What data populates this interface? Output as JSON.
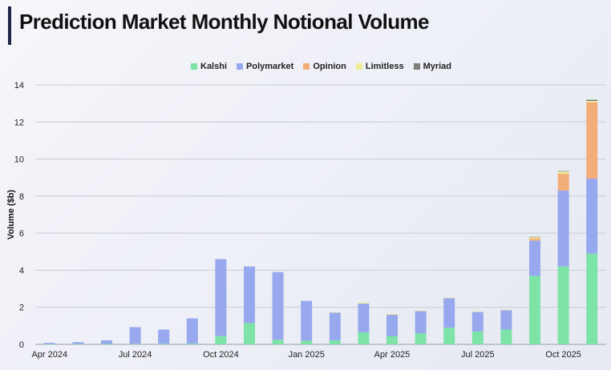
{
  "colors": {
    "kalshi": "#7de3a7",
    "polymarket": "#98a8ee",
    "opinion": "#f3ad78",
    "limitless": "#f0eb96",
    "myriad": "#7f8079",
    "title_accent": "#1f2544"
  },
  "chart_data": {
    "type": "bar",
    "stacked": true,
    "title": "Prediction Market Monthly Notional Volume",
    "ylabel": "Volume ($b)",
    "xlabel": "",
    "ylim": [
      0,
      14
    ],
    "yticks": [
      0,
      2,
      4,
      6,
      8,
      10,
      12,
      14
    ],
    "grid": true,
    "legend_position": "top-center",
    "categories": [
      "Apr 2024",
      "May 2024",
      "Jun 2024",
      "Jul 2024",
      "Aug 2024",
      "Sep 2024",
      "Oct 2024",
      "Nov 2024",
      "Dec 2024",
      "Jan 2025",
      "Feb 2025",
      "Mar 2025",
      "Apr 2025",
      "May 2025",
      "Jun 2025",
      "Jul 2025",
      "Aug 2025",
      "Sep 2025",
      "Oct 2025",
      "Nov 2025"
    ],
    "xtick_labels": [
      {
        "index": 0,
        "label": "Apr 2024"
      },
      {
        "index": 3,
        "label": "Jul 2024"
      },
      {
        "index": 6,
        "label": "Oct 2024"
      },
      {
        "index": 9,
        "label": "Jan 2025"
      },
      {
        "index": 12,
        "label": "Apr 2025"
      },
      {
        "index": 15,
        "label": "Jul 2025"
      },
      {
        "index": 18,
        "label": "Oct 2025"
      }
    ],
    "series": [
      {
        "name": "Kalshi",
        "color_key": "kalshi",
        "values": [
          0.01,
          0.02,
          0.02,
          0.03,
          0.03,
          0.05,
          0.45,
          1.15,
          0.25,
          0.2,
          0.22,
          0.65,
          0.45,
          0.6,
          0.9,
          0.7,
          0.8,
          3.7,
          4.2,
          4.9
        ]
      },
      {
        "name": "Polymarket",
        "color_key": "polymarket",
        "values": [
          0.07,
          0.1,
          0.2,
          0.9,
          0.77,
          1.35,
          4.15,
          3.05,
          3.65,
          2.15,
          1.5,
          1.55,
          1.15,
          1.2,
          1.6,
          1.05,
          1.05,
          1.9,
          4.1,
          4.05
        ]
      },
      {
        "name": "Opinion",
        "color_key": "opinion",
        "values": [
          0,
          0,
          0,
          0,
          0,
          0,
          0,
          0,
          0,
          0,
          0,
          0,
          0,
          0,
          0,
          0,
          0,
          0.1,
          0.9,
          4.1
        ]
      },
      {
        "name": "Limitless",
        "color_key": "limitless",
        "values": [
          0,
          0,
          0,
          0,
          0,
          0,
          0,
          0,
          0,
          0,
          0.02,
          0.05,
          0.05,
          0.03,
          0.02,
          0.02,
          0.02,
          0.08,
          0.12,
          0.08
        ]
      },
      {
        "name": "Myriad",
        "color_key": "myriad",
        "values": [
          0,
          0,
          0,
          0,
          0,
          0,
          0,
          0,
          0,
          0,
          0,
          0,
          0,
          0,
          0,
          0,
          0,
          0.02,
          0.03,
          0.07
        ]
      }
    ]
  }
}
